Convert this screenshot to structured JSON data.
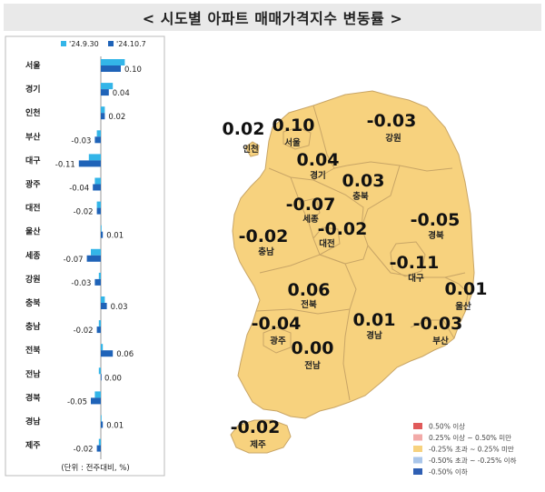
{
  "title": "< 시도별 아파트 매매가격지수 변동률 >",
  "chart_data": {
    "type": "bar",
    "orientation": "horizontal",
    "legend": [
      "'24.9.30",
      "'24.10.7"
    ],
    "legend_position": "top-left",
    "unit_note": "(단위 : 전주대비, %)",
    "series_colors": [
      "#33b5e8",
      "#1f63b8"
    ],
    "categories": [
      "서울",
      "경기",
      "인천",
      "부산",
      "대구",
      "광주",
      "대전",
      "울산",
      "세종",
      "강원",
      "충북",
      "충남",
      "전북",
      "전남",
      "경북",
      "경남",
      "제주"
    ],
    "series": [
      {
        "name": "'24.9.30",
        "values": [
          0.12,
          0.06,
          0.02,
          -0.02,
          -0.06,
          -0.03,
          -0.02,
          0.0,
          -0.05,
          -0.01,
          0.02,
          -0.01,
          0.01,
          -0.01,
          -0.03,
          0.0,
          -0.01
        ]
      },
      {
        "name": "'24.10.7",
        "values": [
          0.1,
          0.04,
          0.02,
          -0.03,
          -0.11,
          -0.04,
          -0.02,
          0.01,
          -0.07,
          -0.03,
          0.03,
          -0.02,
          0.06,
          0.0,
          -0.05,
          0.01,
          -0.02
        ]
      }
    ],
    "value_labels": [
      "0.10",
      "0.04",
      "0.02",
      "-0.03",
      "-0.11",
      "-0.04",
      "-0.02",
      "0.01",
      "-0.07",
      "-0.03",
      "0.03",
      "-0.02",
      "0.06",
      "0.00",
      "-0.05",
      "0.01",
      "-0.02"
    ]
  },
  "map": {
    "regions": [
      {
        "name": "인천",
        "value": "0.02"
      },
      {
        "name": "서울",
        "value": "0.10"
      },
      {
        "name": "강원",
        "value": "-0.03"
      },
      {
        "name": "경기",
        "value": "0.04"
      },
      {
        "name": "충북",
        "value": "0.03"
      },
      {
        "name": "세종",
        "value": "-0.07"
      },
      {
        "name": "대전",
        "value": "-0.02"
      },
      {
        "name": "충남",
        "value": "-0.02"
      },
      {
        "name": "경북",
        "value": "-0.05"
      },
      {
        "name": "대구",
        "value": "-0.11"
      },
      {
        "name": "울산",
        "value": "0.01"
      },
      {
        "name": "전북",
        "value": "0.06"
      },
      {
        "name": "광주",
        "value": "-0.04"
      },
      {
        "name": "경남",
        "value": "0.01"
      },
      {
        "name": "부산",
        "value": "-0.03"
      },
      {
        "name": "전남",
        "value": "0.00"
      },
      {
        "name": "제주",
        "value": "-0.02"
      }
    ],
    "fill_color": "#f7d27e",
    "legend": [
      {
        "label": "0.50% 이상",
        "color": "#e05a5a"
      },
      {
        "label": "0.25% 이상 ~ 0.50% 미만",
        "color": "#f2aaa8"
      },
      {
        "label": "-0.25% 초과 ~ 0.25% 미만",
        "color": "#f7d27e"
      },
      {
        "label": "-0.50% 초과 ~ -0.25% 이하",
        "color": "#aac6ea"
      },
      {
        "label": "-0.50% 이하",
        "color": "#2f5fb3"
      }
    ]
  }
}
